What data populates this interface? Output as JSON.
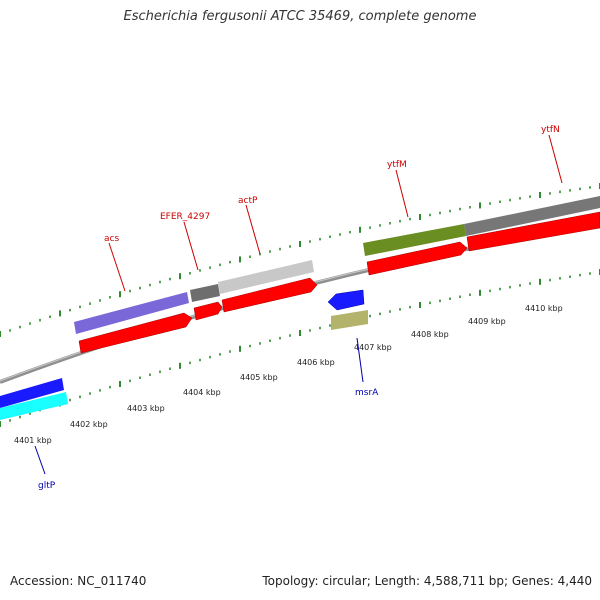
{
  "title": "Escherichia fergusonii ATCC 35469, complete genome",
  "footer": {
    "accession": "Accession: NC_011740",
    "topology": "Topology: circular; Length: 4,588,711 bp; Genes: 4,440"
  },
  "colors": {
    "background": "#ffffff",
    "tick_green": "#2e8b2e",
    "backbone": "#8a8a8a",
    "forward_gene": "#ff0000",
    "label_forward": "#cc0000",
    "label_reverse": "#0000aa"
  },
  "scale": {
    "unit": "kbp",
    "labels": [
      {
        "text": "4401 kbp"
      },
      {
        "text": "4402 kbp"
      },
      {
        "text": "4403 kbp"
      },
      {
        "text": "4404 kbp"
      },
      {
        "text": "4405 kbp"
      },
      {
        "text": "4406 kbp"
      },
      {
        "text": "4407 kbp"
      },
      {
        "text": "4408 kbp"
      },
      {
        "text": "4409 kbp"
      },
      {
        "text": "4410 kbp"
      }
    ]
  },
  "gene_labels": [
    {
      "name": "acs",
      "strand": "forward"
    },
    {
      "name": "EFER_4297",
      "strand": "forward"
    },
    {
      "name": "actP",
      "strand": "forward"
    },
    {
      "name": "ytfM",
      "strand": "forward"
    },
    {
      "name": "ytfN",
      "strand": "forward"
    },
    {
      "name": "msrA",
      "strand": "reverse"
    },
    {
      "name": "gltP",
      "strand": "reverse"
    }
  ]
}
